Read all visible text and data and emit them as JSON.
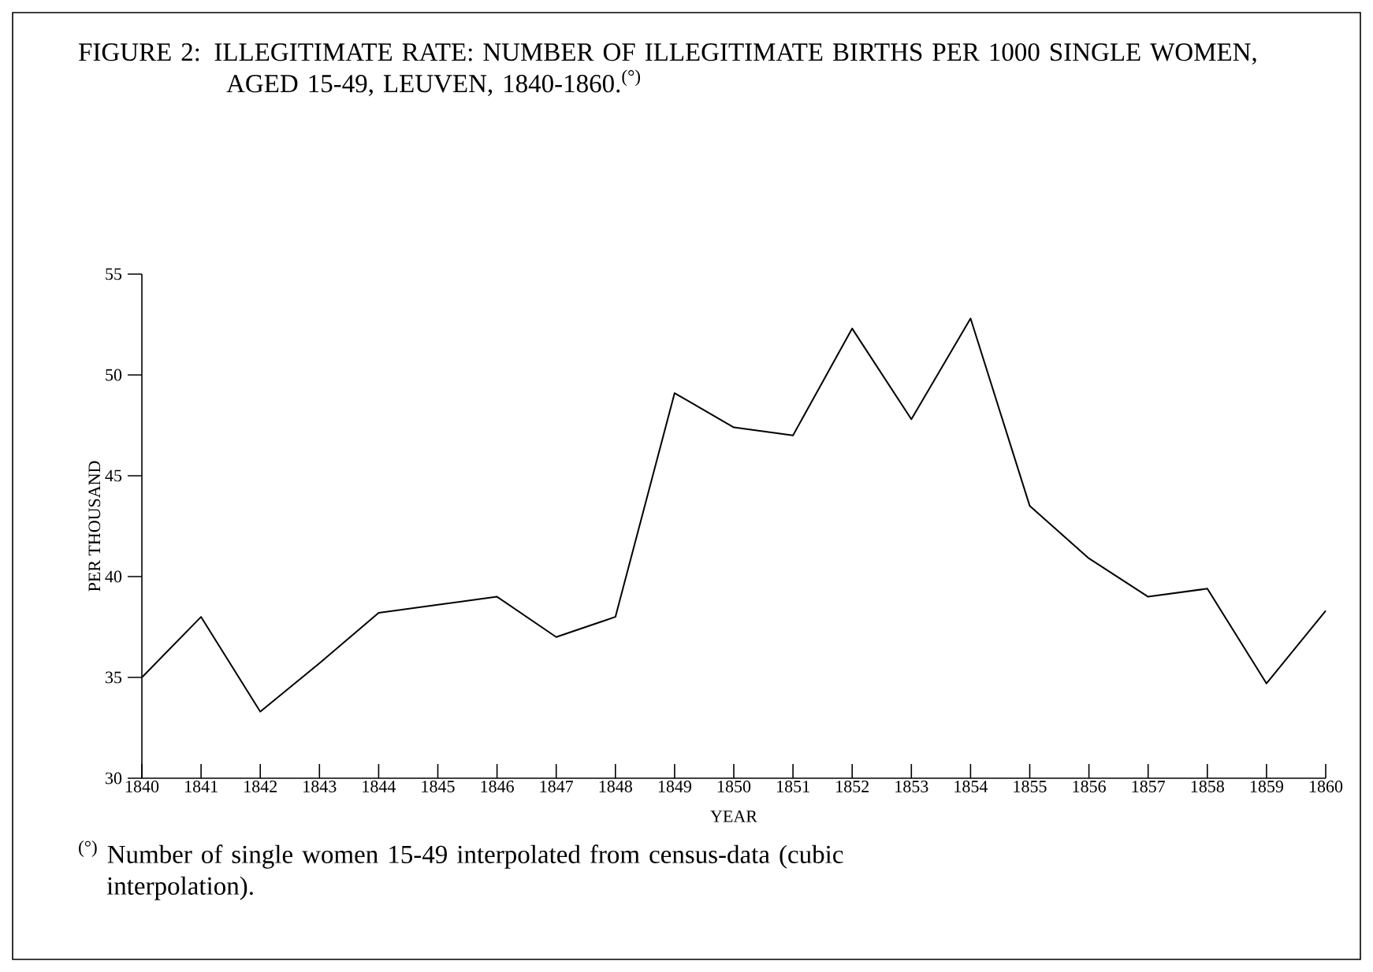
{
  "chart_data": {
    "type": "line",
    "title": "FIGURE 2: ILLEGITIMATE RATE: NUMBER OF ILLEGITIMATE BIRTHS PER 1000 SINGLE WOMEN, AGED 15-49, LEUVEN, 1840-1860.$^{(°)}$",
    "xlabel": "YEAR",
    "ylabel": "PER THOUSAND",
    "x": [
      1840,
      1841,
      1842,
      1843,
      1844,
      1845,
      1846,
      1847,
      1848,
      1849,
      1850,
      1851,
      1852,
      1853,
      1854,
      1855,
      1856,
      1857,
      1858,
      1859,
      1860
    ],
    "series": [
      {
        "color": "#000000",
        "values": [
          35.0,
          38.0,
          33.3,
          35.7,
          38.2,
          38.6,
          39.0,
          37.0,
          38.0,
          49.1,
          47.4,
          47.0,
          52.3,
          47.8,
          52.8,
          43.5,
          40.9,
          39.0,
          39.4,
          34.7,
          38.3
        ]
      }
    ],
    "xlim": [
      1840,
      1860
    ],
    "xticks": [
      1840,
      1841,
      1842,
      1843,
      1844,
      1845,
      1846,
      1847,
      1848,
      1849,
      1850,
      1851,
      1852,
      1853,
      1854,
      1855,
      1856,
      1857,
      1858,
      1859,
      1860
    ],
    "ylim": [
      30,
      55
    ],
    "yticks": [
      30,
      35,
      40,
      45,
      50,
      55
    ],
    "annotations": [
      "$^{(°)}$ Number of single women 15-49 interpolated from census-data (cubic interpolation)."
    ]
  }
}
